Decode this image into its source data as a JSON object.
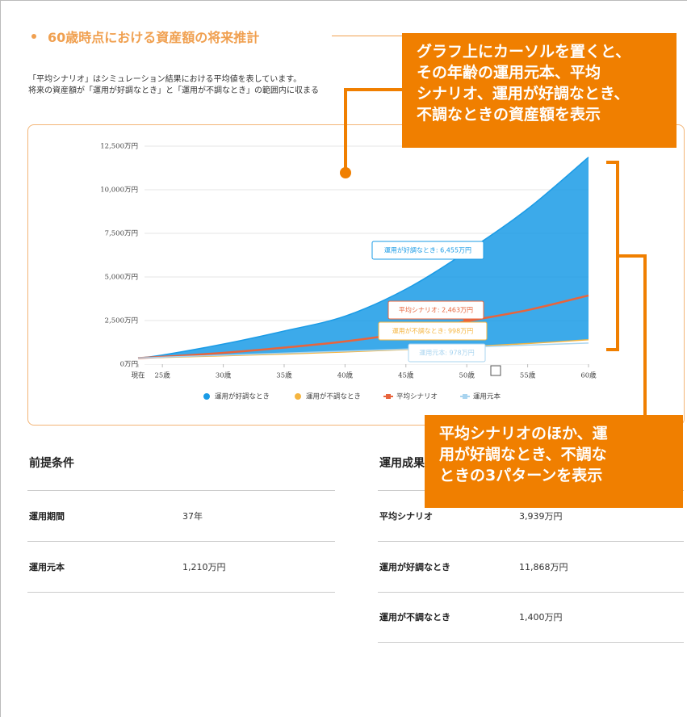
{
  "section_title": "60歳時点における資産額の将来推計",
  "description": [
    "「平均シナリオ」はシミュレーション結果における平均値を表しています。",
    "将来の資産額が「運用が好調なとき」と「運用が不調なとき」の範囲内に収まる"
  ],
  "chart_data": {
    "type": "area_line",
    "x": [
      23,
      25,
      30,
      35,
      40,
      45,
      50,
      55,
      60
    ],
    "xlim": [
      23,
      60
    ],
    "xticks": [
      {
        "value": 23,
        "label": "現在"
      },
      {
        "value": 25,
        "label": "25歳"
      },
      {
        "value": 30,
        "label": "30歳"
      },
      {
        "value": 35,
        "label": "35歳"
      },
      {
        "value": 40,
        "label": "40歳"
      },
      {
        "value": 45,
        "label": "45歳"
      },
      {
        "value": 50,
        "label": "50歳"
      },
      {
        "value": 55,
        "label": "55歳"
      },
      {
        "value": 60,
        "label": "60歳"
      }
    ],
    "ylim": [
      0,
      12500
    ],
    "yticks": [
      {
        "value": 0,
        "label": "0万円"
      },
      {
        "value": 2500,
        "label": "2,500万円"
      },
      {
        "value": 5000,
        "label": "5,000万円"
      },
      {
        "value": 7500,
        "label": "7,500万円"
      },
      {
        "value": 10000,
        "label": "10,000万円"
      },
      {
        "value": 12500,
        "label": "12,500万円"
      }
    ],
    "grid": true,
    "series": [
      {
        "name": "運用が好調なとき",
        "color": "#1a9be6",
        "values": [
          352,
          520,
          1150,
          1900,
          2750,
          4300,
          6455,
          8900,
          11868
        ]
      },
      {
        "name": "運用が不調なとき",
        "color": "#f5b540",
        "values": [
          352,
          380,
          480,
          580,
          700,
          840,
          998,
          1180,
          1400
        ]
      },
      {
        "name": "平均シナリオ",
        "color": "#e8643c",
        "values": [
          352,
          420,
          650,
          950,
          1300,
          1800,
          2463,
          3100,
          3939
        ]
      },
      {
        "name": "運用元本",
        "color": "#a9d4ef",
        "values": [
          352,
          398,
          514,
          630,
          746,
          862,
          978,
          1094,
          1210
        ]
      }
    ],
    "tooltip": [
      "運用が好調なとき: 6,455万円",
      "平均シナリオ: 2,463万円",
      "運用が不調なとき: 998万円",
      "運用元本: 978万円"
    ]
  },
  "conditions": {
    "title": "前提条件",
    "rows": [
      [
        "運用期間",
        "37年"
      ],
      [
        "運用元本",
        "1,210万円"
      ]
    ]
  },
  "results": {
    "title": "運用成果",
    "rows": [
      [
        "平均シナリオ",
        "3,939万円"
      ],
      [
        "運用が好調なとき",
        "11,868万円"
      ],
      [
        "運用が不調なとき",
        "1,400万円"
      ]
    ]
  },
  "callouts": [
    [
      "グラフ上にカーソルを置くと、",
      "その年齢の運用元本、平均",
      "シナリオ、運用が好調なとき、",
      "不調なときの資産額を表示"
    ],
    [
      "平均シナリオのほか、運",
      "用が好調なとき、不調な",
      "ときの3パターンを表示"
    ]
  ]
}
